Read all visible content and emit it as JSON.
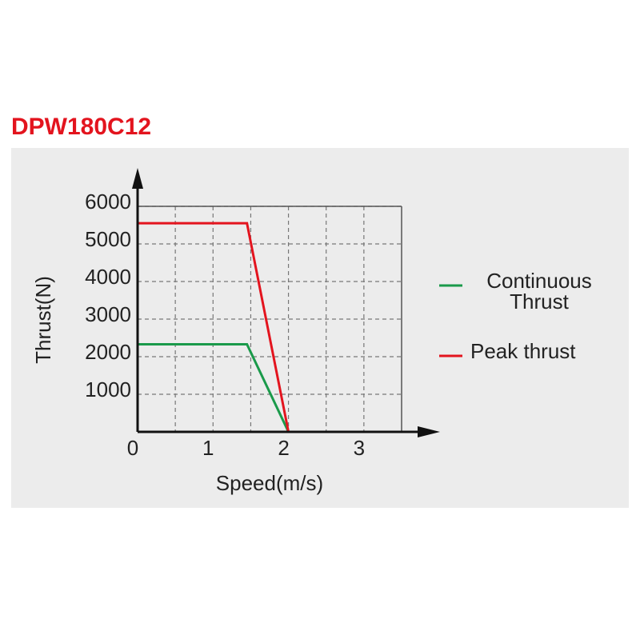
{
  "chart_data": {
    "type": "line",
    "title": "DPW180C12",
    "x_label": "Speed(m/s)",
    "y_label": "Thrust(N)",
    "xlim": [
      0,
      3.5
    ],
    "ylim": [
      0,
      6000
    ],
    "xticks": [
      0,
      1,
      2,
      3
    ],
    "yticks": [
      1000,
      2000,
      3000,
      4000,
      5000,
      6000
    ],
    "xgrid": [
      0.5,
      1,
      1.5,
      2,
      2.5,
      3
    ],
    "grid": true,
    "legend": "right",
    "series": [
      {
        "name": "Continuous Thrust",
        "color": "#1a9a4a",
        "x": [
          0,
          1.45,
          2
        ],
        "values": [
          2330,
          2330,
          0
        ]
      },
      {
        "name": "Peak thrust",
        "color": "#e3141e",
        "x": [
          0,
          1.45,
          2
        ],
        "values": [
          5550,
          5550,
          0
        ]
      }
    ]
  }
}
